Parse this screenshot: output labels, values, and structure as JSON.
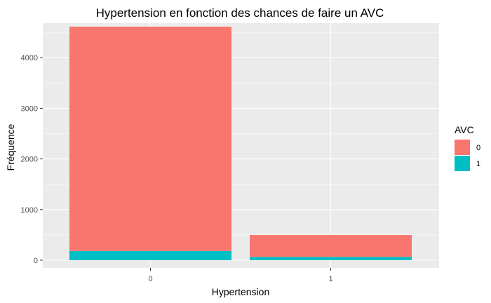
{
  "chart_data": {
    "type": "bar",
    "stacked": true,
    "title": "Hypertension en fonction des chances de faire un AVC",
    "xlabel": "Hypertension",
    "ylabel": "Fréquence",
    "categories": [
      "0",
      "1"
    ],
    "series": [
      {
        "name": "1",
        "color": "#00BFC4",
        "values": [
          183,
          66
        ]
      },
      {
        "name": "0",
        "color": "#F8766D",
        "values": [
          4429,
          432
        ]
      }
    ],
    "ylim": [
      0,
      4700
    ],
    "yticks": [
      0,
      1000,
      2000,
      3000,
      4000
    ],
    "ytick_labels": [
      "0",
      "1000",
      "2000",
      "3000",
      "4000"
    ],
    "grid": true,
    "legend": {
      "title": "AVC",
      "position": "right",
      "entries": [
        {
          "label": "0",
          "color": "#F8766D"
        },
        {
          "label": "1",
          "color": "#00BFC4"
        }
      ]
    },
    "panel_background": "#EBEBEB",
    "grid_color": "#FFFFFF"
  }
}
